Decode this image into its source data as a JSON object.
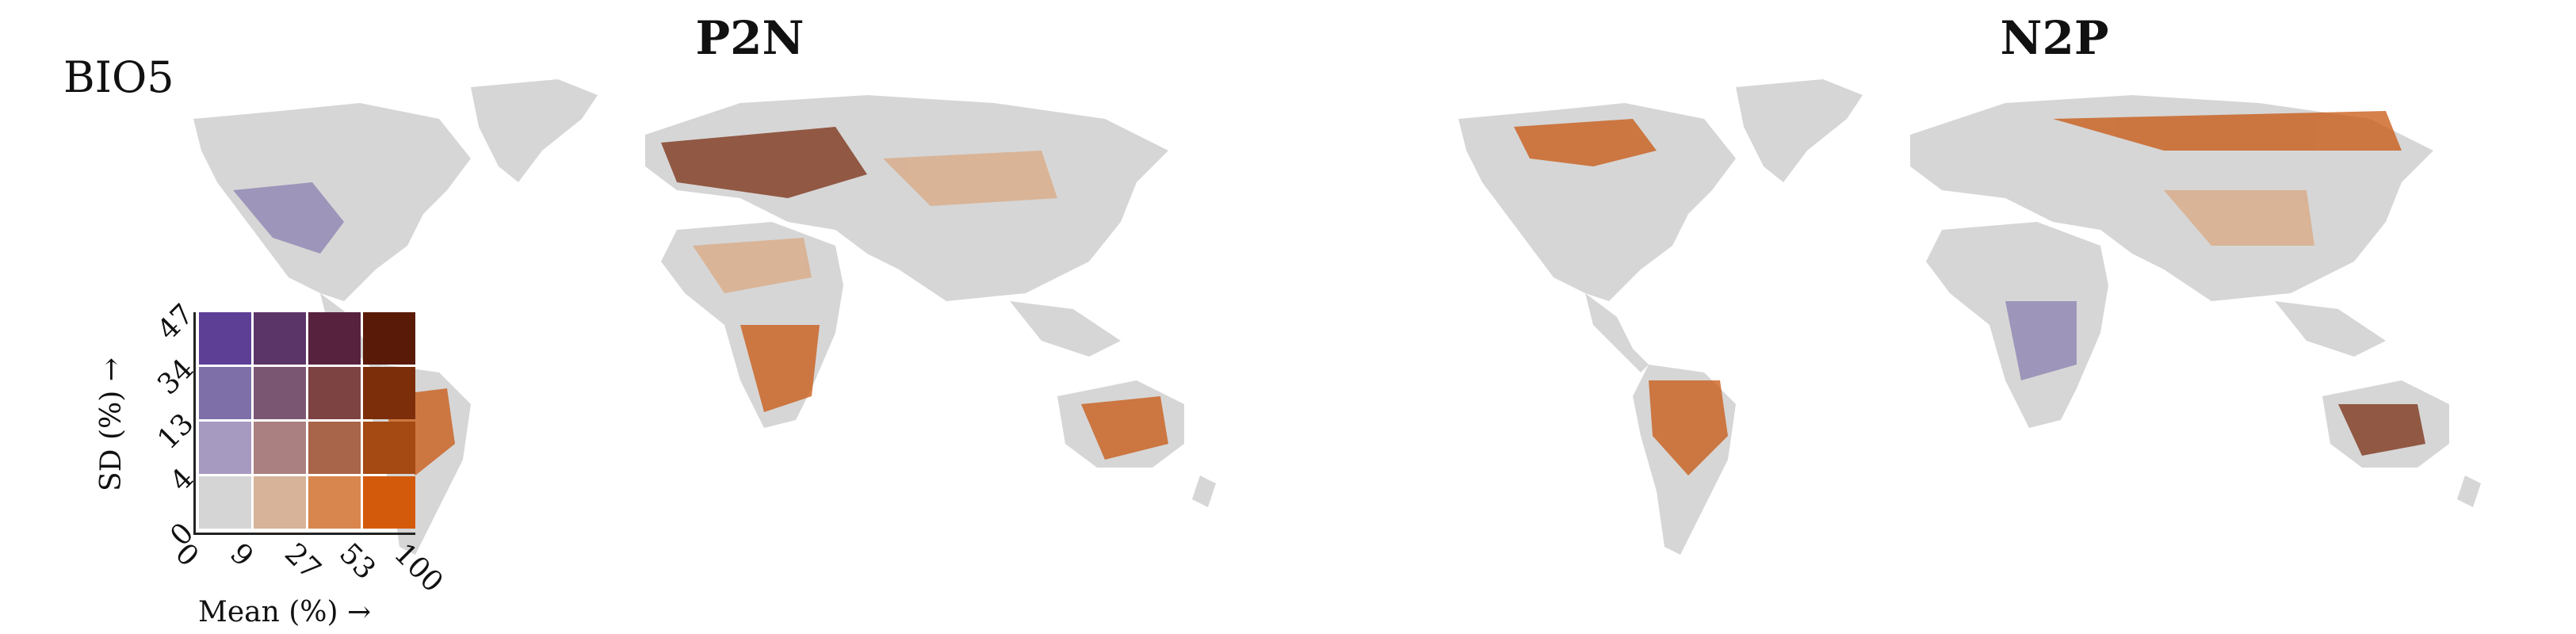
{
  "variable": "BIO5",
  "panels": [
    {
      "title": "P2N"
    },
    {
      "title": "N2P"
    }
  ],
  "legend": {
    "type": "bivariate",
    "x_axis_title": "Mean (%) →",
    "y_axis_title": "SD (%) →",
    "x_breaks": [
      "0",
      "9",
      "27",
      "53",
      "100"
    ],
    "y_breaks": [
      "0",
      "4",
      "13",
      "34",
      "47"
    ],
    "colors_top_to_bottom": [
      [
        "#5e3f96",
        "#5b3468",
        "#57223d",
        "#5a1a08"
      ],
      [
        "#7f6fa8",
        "#7b5673",
        "#7d4242",
        "#7c2e0a"
      ],
      [
        "#a79ac0",
        "#ab8080",
        "#a9654a",
        "#a54a12"
      ],
      [
        "#d5d5d5",
        "#d6b399",
        "#d9864e",
        "#d45a0b"
      ]
    ]
  },
  "colors": {
    "land": "#d6d6d6",
    "orange": "#c8560f",
    "brown": "#7a2e12",
    "purple": "#8b7fb0",
    "tan": "#d9a882"
  }
}
